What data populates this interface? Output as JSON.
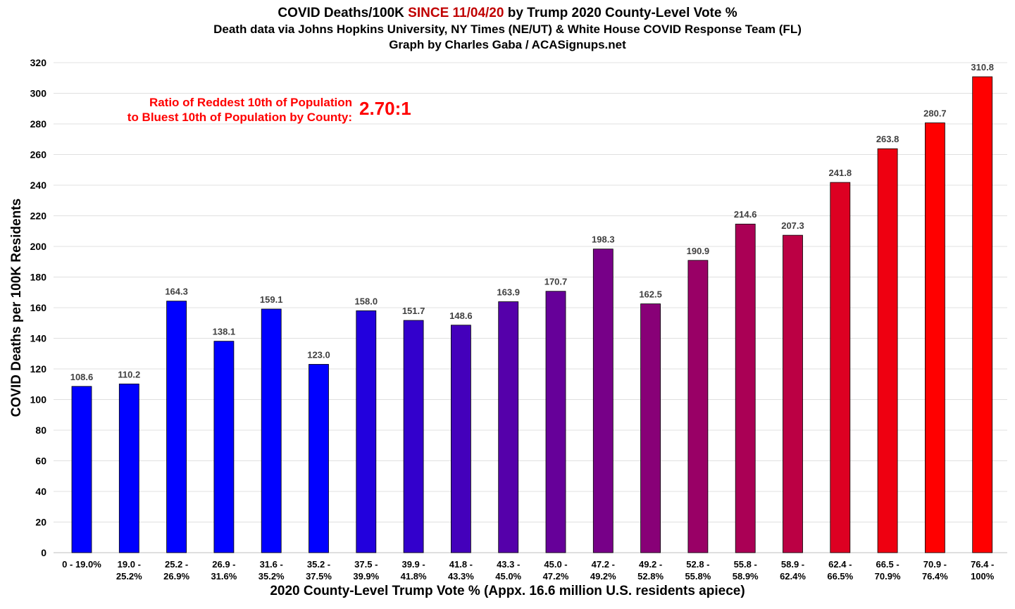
{
  "chart_data": {
    "type": "bar",
    "title_part1": "COVID Deaths/100K ",
    "title_highlight": "SINCE 11/04/20",
    "title_part2": " by Trump 2020 County-Level Vote %",
    "subtitle": "Death data via Johns Hopkins University, NY Times (NE/UT) & White House COVID Response Team (FL)",
    "credit": "Graph by Charles Gaba / ACASignups.net",
    "annotation_line1": "Ratio of Reddest 10th of Population",
    "annotation_line2": "to Bluest 10th of Population by County:",
    "annotation_value": "2.70:1",
    "xlabel": "2020 County-Level Trump Vote % (Appx. 16.6 million U.S. residents apiece)",
    "ylabel": "COVID Deaths per 100K Residents",
    "ylim": [
      0,
      320
    ],
    "yticks": [
      0,
      20,
      40,
      60,
      80,
      100,
      120,
      140,
      160,
      180,
      200,
      220,
      240,
      260,
      280,
      300,
      320
    ],
    "grid": true,
    "categories": [
      [
        "0 - 19.0%"
      ],
      [
        "19.0 -",
        "25.2%"
      ],
      [
        "25.2 -",
        "26.9%"
      ],
      [
        "26.9 -",
        "31.6%"
      ],
      [
        "31.6 -",
        "35.2%"
      ],
      [
        "35.2 -",
        "37.5%"
      ],
      [
        "37.5 -",
        "39.9%"
      ],
      [
        "39.9 -",
        "41.8%"
      ],
      [
        "41.8 -",
        "43.3%"
      ],
      [
        "43.3 -",
        "45.0%"
      ],
      [
        "45.0 -",
        "47.2%"
      ],
      [
        "47.2 -",
        "49.2%"
      ],
      [
        "49.2 -",
        "52.8%"
      ],
      [
        "52.8 -",
        "55.8%"
      ],
      [
        "55.8 -",
        "58.9%"
      ],
      [
        "58.9 -",
        "62.4%"
      ],
      [
        "62.4 -",
        "66.5%"
      ],
      [
        "66.5 -",
        "70.9%"
      ],
      [
        "70.9 -",
        "76.4%"
      ],
      [
        "76.4 -",
        "100%"
      ]
    ],
    "values": [
      108.6,
      110.2,
      164.3,
      138.1,
      159.1,
      123.0,
      158.0,
      151.7,
      148.6,
      163.9,
      170.7,
      198.3,
      162.5,
      190.9,
      214.6,
      207.3,
      241.8,
      263.8,
      280.7,
      310.8
    ],
    "colors": [
      "#0000ff",
      "#0000ff",
      "#0000ff",
      "#0000ff",
      "#0000ff",
      "#0000ff",
      "#2200dd",
      "#3300cc",
      "#4400bb",
      "#5500aa",
      "#660099",
      "#770088",
      "#880077",
      "#990066",
      "#aa0055",
      "#bb0044",
      "#dd0022",
      "#ee0011",
      "#ff0000",
      "#ff0000"
    ]
  }
}
